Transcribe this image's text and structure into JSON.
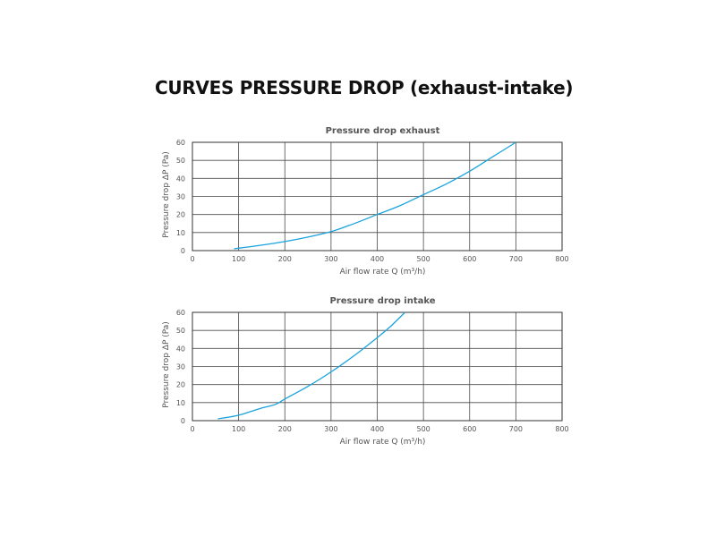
{
  "page_title": "CURVES PRESSURE DROP (exhaust-intake)",
  "colors": {
    "curve": "#1aa3dd",
    "grid": "#4a4a4a"
  },
  "chart_data": [
    {
      "type": "line",
      "title": "Pressure drop exhaust",
      "xlabel": "Air flow rate Q (m³/h)",
      "ylabel": "Pressure drop ΔP (Pa)",
      "xlim": [
        0,
        800
      ],
      "ylim": [
        0,
        60
      ],
      "xticks": [
        "0",
        "100",
        "200",
        "300",
        "400",
        "500",
        "600",
        "700",
        "800"
      ],
      "yticks": [
        "0",
        "10",
        "20",
        "30",
        "40",
        "50",
        "60"
      ],
      "grid": true,
      "series": [
        {
          "x": [
            90,
            150,
            200,
            250,
            300,
            350,
            400,
            450,
            500,
            550,
            600,
            650,
            700
          ],
          "y": [
            1,
            3,
            5,
            7.5,
            10.5,
            15,
            20,
            25,
            31,
            37,
            44,
            52,
            60
          ]
        }
      ]
    },
    {
      "type": "line",
      "title": "Pressure drop intake",
      "xlabel": "Air flow rate Q (m³/h)",
      "ylabel": "Pressure drop ΔP (Pa)",
      "xlim": [
        0,
        800
      ],
      "ylim": [
        0,
        60
      ],
      "xticks": [
        "0",
        "100",
        "200",
        "300",
        "400",
        "500",
        "600",
        "700",
        "800"
      ],
      "yticks": [
        "0",
        "10",
        "20",
        "30",
        "40",
        "50",
        "60"
      ],
      "grid": true,
      "series": [
        {
          "x": [
            55,
            100,
            150,
            180,
            200,
            250,
            300,
            350,
            400,
            430,
            460
          ],
          "y": [
            1,
            3,
            7,
            9,
            12,
            19,
            27,
            36,
            46,
            52.5,
            60
          ]
        }
      ]
    }
  ]
}
